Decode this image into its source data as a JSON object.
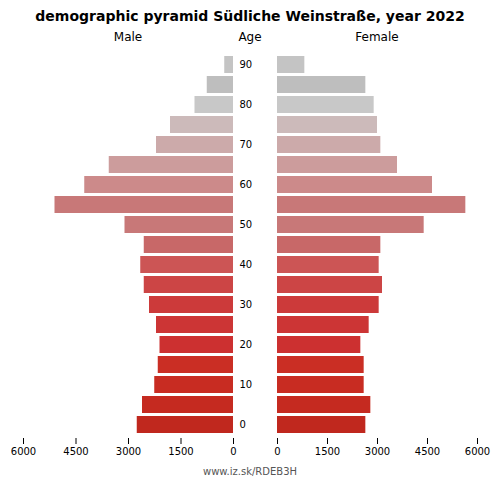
{
  "chart_data": {
    "type": "bar",
    "orientation": "horizontal",
    "title": "demographic pyramid Südliche Weinstraße, year 2022",
    "ylabel": "Age",
    "caption": "www.iz.sk/RDEB3H",
    "categories": [
      "0",
      null,
      "10",
      null,
      "20",
      null,
      "30",
      null,
      "40",
      null,
      "50",
      null,
      "60",
      null,
      "70",
      null,
      "80",
      null,
      "90"
    ],
    "series": [
      {
        "name": "Male",
        "values": [
          2750,
          2600,
          2250,
          2150,
          2100,
          2200,
          2400,
          2550,
          2650,
          2550,
          3100,
          5100,
          4250,
          3550,
          2200,
          1800,
          1100,
          750,
          250
        ],
        "colors": [
          "#c0281e",
          "#c52a20",
          "#c82c22",
          "#ca2e24",
          "#cc3030",
          "#cc3535",
          "#cc3a3a",
          "#cc4545",
          "#cc5555",
          "#c86868",
          "#c87878",
          "#c87878",
          "#cc8a8a",
          "#cc9c9c",
          "#ccaaaa",
          "#ccbaba",
          "#c8c8c8",
          "#bebebe",
          "#c4c4c4"
        ]
      },
      {
        "name": "Female",
        "values": [
          2650,
          2800,
          2600,
          2600,
          2500,
          2750,
          3050,
          3150,
          3050,
          3100,
          4400,
          5650,
          4650,
          3600,
          3100,
          3000,
          2900,
          2650,
          820
        ],
        "colors": [
          "#c0281e",
          "#c52a20",
          "#c82c22",
          "#ca2e24",
          "#cc3030",
          "#cc3535",
          "#cc3a3a",
          "#cc4545",
          "#cc5555",
          "#c86868",
          "#c87878",
          "#c87878",
          "#cc8a8a",
          "#cc9c9c",
          "#ccaaaa",
          "#ccbaba",
          "#c8c8c8",
          "#bebebe",
          "#c4c4c4"
        ]
      }
    ],
    "xlim": [
      0,
      6000
    ],
    "xticks": [
      0,
      1500,
      3000,
      4500,
      6000
    ],
    "grid": false
  }
}
